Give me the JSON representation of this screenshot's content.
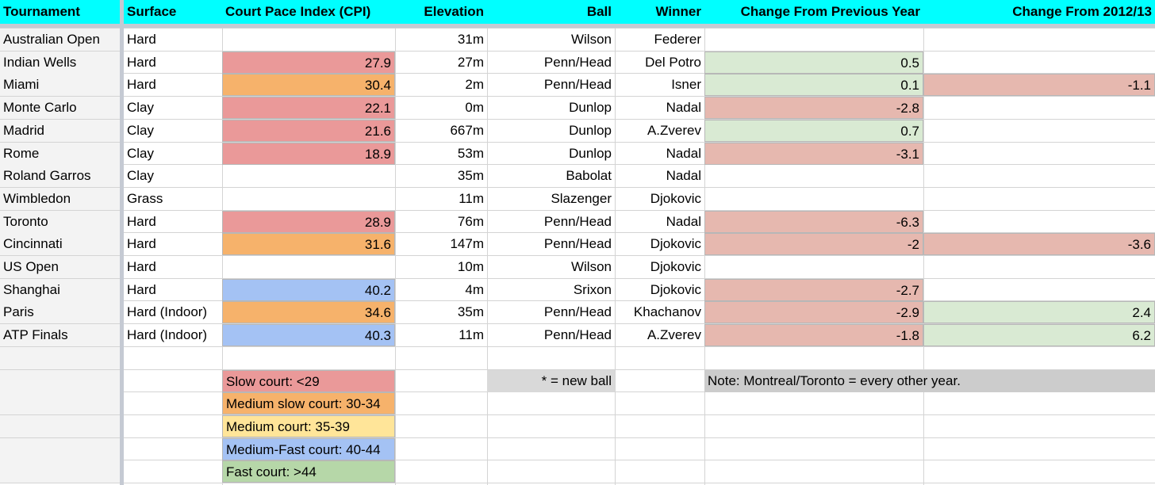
{
  "colors": {
    "header_bg": "#00ffff",
    "slow": "#ea9999",
    "medium_slow": "#f6b26b",
    "medium": "#ffe599",
    "medium_fast": "#a4c2f4",
    "fast": "#b6d7a8",
    "positive_change": "#d9ead3",
    "negative_change": "#e6b8af",
    "note_bg": "#d9d9d9",
    "note2_bg": "#cccccc",
    "first_col_bg": "#f3f3f3"
  },
  "headers": [
    "Tournament",
    "Surface",
    "Court Pace Index (CPI)",
    "Elevation",
    "Ball",
    "Winner",
    "Change From Previous Year",
    "Change From 2012/13"
  ],
  "rows": [
    {
      "tournament": "Australian Open",
      "surface": "Hard",
      "cpi": "",
      "cpi_cat": "",
      "elevation": "31m",
      "ball": "Wilson",
      "winner": "Federer",
      "chg_prev": "",
      "chg_prev_sign": "",
      "chg_2012": "",
      "chg_2012_sign": ""
    },
    {
      "tournament": "Indian Wells",
      "surface": "Hard",
      "cpi": "27.9",
      "cpi_cat": "slow",
      "elevation": "27m",
      "ball": "Penn/Head",
      "winner": "Del Potro",
      "chg_prev": "0.5",
      "chg_prev_sign": "pos",
      "chg_2012": "",
      "chg_2012_sign": ""
    },
    {
      "tournament": "Miami",
      "surface": "Hard",
      "cpi": "30.4",
      "cpi_cat": "medium_slow",
      "elevation": "2m",
      "ball": "Penn/Head",
      "winner": "Isner",
      "chg_prev": "0.1",
      "chg_prev_sign": "pos",
      "chg_2012": "-1.1",
      "chg_2012_sign": "neg"
    },
    {
      "tournament": "Monte Carlo",
      "surface": "Clay",
      "cpi": "22.1",
      "cpi_cat": "slow",
      "elevation": "0m",
      "ball": "Dunlop",
      "winner": "Nadal",
      "chg_prev": "-2.8",
      "chg_prev_sign": "neg",
      "chg_2012": "",
      "chg_2012_sign": ""
    },
    {
      "tournament": "Madrid",
      "surface": "Clay",
      "cpi": "21.6",
      "cpi_cat": "slow",
      "elevation": "667m",
      "ball": "Dunlop",
      "winner": "A.Zverev",
      "chg_prev": "0.7",
      "chg_prev_sign": "pos",
      "chg_2012": "",
      "chg_2012_sign": ""
    },
    {
      "tournament": "Rome",
      "surface": "Clay",
      "cpi": "18.9",
      "cpi_cat": "slow",
      "elevation": "53m",
      "ball": "Dunlop",
      "winner": "Nadal",
      "chg_prev": "-3.1",
      "chg_prev_sign": "neg",
      "chg_2012": "",
      "chg_2012_sign": ""
    },
    {
      "tournament": "Roland Garros",
      "surface": "Clay",
      "cpi": "",
      "cpi_cat": "",
      "elevation": "35m",
      "ball": "Babolat",
      "winner": "Nadal",
      "chg_prev": "",
      "chg_prev_sign": "",
      "chg_2012": "",
      "chg_2012_sign": ""
    },
    {
      "tournament": "Wimbledon",
      "surface": "Grass",
      "cpi": "",
      "cpi_cat": "",
      "elevation": "11m",
      "ball": "Slazenger",
      "winner": "Djokovic",
      "chg_prev": "",
      "chg_prev_sign": "",
      "chg_2012": "",
      "chg_2012_sign": ""
    },
    {
      "tournament": "Toronto",
      "surface": "Hard",
      "cpi": "28.9",
      "cpi_cat": "slow",
      "elevation": "76m",
      "ball": "Penn/Head",
      "winner": "Nadal",
      "chg_prev": "-6.3",
      "chg_prev_sign": "neg",
      "chg_2012": "",
      "chg_2012_sign": ""
    },
    {
      "tournament": "Cincinnati",
      "surface": "Hard",
      "cpi": "31.6",
      "cpi_cat": "medium_slow",
      "elevation": "147m",
      "ball": "Penn/Head",
      "winner": "Djokovic",
      "chg_prev": "-2",
      "chg_prev_sign": "neg",
      "chg_2012": "-3.6",
      "chg_2012_sign": "neg"
    },
    {
      "tournament": "US Open",
      "surface": "Hard",
      "cpi": "",
      "cpi_cat": "",
      "elevation": "10m",
      "ball": "Wilson",
      "winner": "Djokovic",
      "chg_prev": "",
      "chg_prev_sign": "",
      "chg_2012": "",
      "chg_2012_sign": ""
    },
    {
      "tournament": "Shanghai",
      "surface": "Hard",
      "cpi": "40.2",
      "cpi_cat": "medium_fast",
      "elevation": "4m",
      "ball": "Srixon",
      "winner": "Djokovic",
      "chg_prev": "-2.7",
      "chg_prev_sign": "neg",
      "chg_2012": "",
      "chg_2012_sign": ""
    },
    {
      "tournament": "Paris",
      "surface": "Hard (Indoor)",
      "cpi": "34.6",
      "cpi_cat": "medium_slow",
      "elevation": "35m",
      "ball": "Penn/Head",
      "winner": "Khachanov",
      "chg_prev": "-2.9",
      "chg_prev_sign": "neg",
      "chg_2012": "2.4",
      "chg_2012_sign": "pos"
    },
    {
      "tournament": "ATP Finals",
      "surface": "Hard (Indoor)",
      "cpi": "40.3",
      "cpi_cat": "medium_fast",
      "elevation": "11m",
      "ball": "Penn/Head",
      "winner": "A.Zverev",
      "chg_prev": "-1.8",
      "chg_prev_sign": "neg",
      "chg_2012": "6.2",
      "chg_2012_sign": "pos"
    }
  ],
  "legend": [
    {
      "label": "Slow court: <29",
      "cat": "slow"
    },
    {
      "label": "Medium slow court: 30-34",
      "cat": "medium_slow"
    },
    {
      "label": "Medium court: 35-39",
      "cat": "medium"
    },
    {
      "label": "Medium-Fast court: 40-44",
      "cat": "medium_fast"
    },
    {
      "label": "Fast court: >44",
      "cat": "fast"
    }
  ],
  "notes": {
    "ball_note": "* = new ball",
    "montreal_note": "Note: Montreal/Toronto = every other year."
  }
}
